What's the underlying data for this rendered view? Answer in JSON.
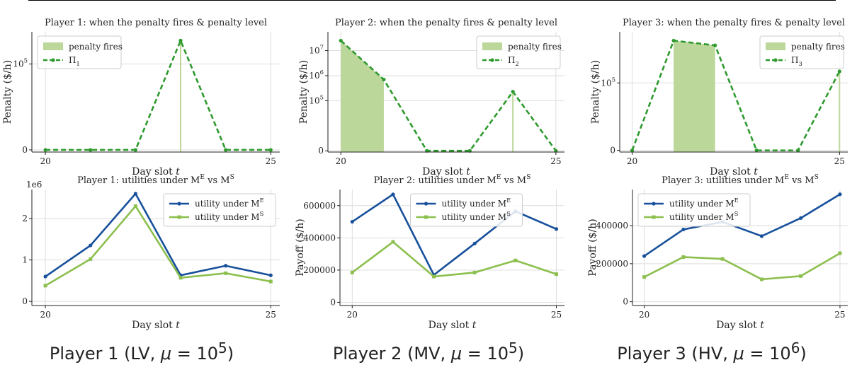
{
  "colors": {
    "penalty_line": "#2e9a2e",
    "penalty_fill": "#bcd79a",
    "utility_e": "#17509b",
    "utility_s": "#8cbf4e",
    "grid": "#dddddd"
  },
  "captions": [
    {
      "prefix": "Player 1 (LV, ",
      "mu": "μ",
      "eq": " = 10",
      "exp": "5",
      "suffix": ")"
    },
    {
      "prefix": "Player 2 (MV, ",
      "mu": "μ",
      "eq": " = 10",
      "exp": "5",
      "suffix": ")"
    },
    {
      "prefix": "Player 3 (HV, ",
      "mu": "μ",
      "eq": " = 10",
      "exp": "6",
      "suffix": ")"
    }
  ],
  "chart_data": [
    {
      "type": "line",
      "title": "Player 1: when the penalty fires & penalty level",
      "xlabel": "Day slot t",
      "ylabel": "Penalty ($/h)",
      "yscale": "symlog",
      "x": [
        20,
        21,
        22,
        23,
        24,
        25
      ],
      "xticks": [
        "20",
        "25"
      ],
      "yticks": [
        "0",
        "10^5"
      ],
      "series": [
        {
          "name": "Π1",
          "values": [
            0,
            0,
            0,
            350000,
            0,
            0
          ]
        }
      ],
      "penalty_fires": [
        [
          23,
          23
        ]
      ],
      "legend": [
        "penalty fires",
        "Π1"
      ],
      "legend_position": "top-left",
      "grid": true
    },
    {
      "type": "line",
      "title": "Player 2: when the penalty fires & penalty level",
      "xlabel": "Day slot t",
      "ylabel": "Penalty ($/h)",
      "yscale": "symlog",
      "x": [
        20,
        21,
        22,
        23,
        24,
        25
      ],
      "xticks": [
        "20",
        "25"
      ],
      "yticks": [
        "0",
        "10^5",
        "10^6",
        "10^7"
      ],
      "series": [
        {
          "name": "Π2",
          "values": [
            25000000,
            700000,
            0,
            0,
            230000,
            0
          ]
        }
      ],
      "penalty_fires": [
        [
          20,
          21
        ],
        [
          24,
          24
        ]
      ],
      "legend": [
        "penalty fires",
        "Π2"
      ],
      "legend_position": "top-right",
      "grid": true
    },
    {
      "type": "line",
      "title": "Player 3: when the penalty fires & penalty level",
      "xlabel": "Day slot t",
      "ylabel": "Penalty ($/h)",
      "yscale": "symlog",
      "x": [
        20,
        21,
        22,
        23,
        24,
        25
      ],
      "xticks": [
        "20",
        "25"
      ],
      "yticks": [
        "0",
        "10^5"
      ],
      "series": [
        {
          "name": "Π3",
          "values": [
            0,
            1800000,
            1300000,
            0,
            0,
            220000
          ]
        }
      ],
      "penalty_fires": [
        [
          21,
          22
        ],
        [
          25,
          25
        ]
      ],
      "legend": [
        "penalty fires",
        "Π3"
      ],
      "legend_position": "top-right",
      "grid": true
    },
    {
      "type": "line",
      "title": "Player 1: utilities under M^E vs M^S",
      "xlabel": "Day slot t",
      "ylabel": "Payoff ($/h)",
      "multiplier": "1e6",
      "x": [
        20,
        21,
        22,
        23,
        24,
        25
      ],
      "xticks": [
        "20",
        "25"
      ],
      "yticks": [
        "0",
        "1",
        "2"
      ],
      "ylim": [
        -0.1,
        2.7
      ],
      "series": [
        {
          "name": "utility under M^E",
          "values": [
            0.6,
            1.35,
            2.6,
            0.63,
            0.86,
            0.63
          ]
        },
        {
          "name": "utility under M^S",
          "values": [
            0.38,
            1.02,
            2.3,
            0.57,
            0.68,
            0.48
          ]
        }
      ],
      "legend_position": "top-right",
      "grid": true
    },
    {
      "type": "line",
      "title": "Player 2: utilities under M^E vs M^S",
      "xlabel": "Day slot t",
      "ylabel": "Payoff ($/h)",
      "x": [
        20,
        21,
        22,
        23,
        24,
        25
      ],
      "xticks": [
        "20",
        "25"
      ],
      "yticks": [
        "0",
        "200000",
        "400000",
        "600000"
      ],
      "ylim": [
        -20000,
        700000
      ],
      "series": [
        {
          "name": "utility under M^E",
          "values": [
            500000,
            670000,
            170000,
            365000,
            565000,
            455000
          ]
        },
        {
          "name": "utility under M^S",
          "values": [
            185000,
            375000,
            160000,
            185000,
            260000,
            175000
          ]
        }
      ],
      "legend_position": "top-center",
      "grid": true
    },
    {
      "type": "line",
      "title": "Player 3: utilities under M^E vs M^S",
      "xlabel": "Day slot t",
      "ylabel": "Payoff ($/h)",
      "x": [
        20,
        21,
        22,
        23,
        24,
        25
      ],
      "xticks": [
        "20",
        "25"
      ],
      "yticks": [
        "0",
        "200000",
        "400000"
      ],
      "ylim": [
        -20000,
        590000
      ],
      "series": [
        {
          "name": "utility under M^E",
          "values": [
            240000,
            380000,
            420000,
            345000,
            440000,
            565000
          ]
        },
        {
          "name": "utility under M^S",
          "values": [
            130000,
            235000,
            225000,
            118000,
            135000,
            255000
          ]
        }
      ],
      "legend_position": "top-left",
      "grid": true
    }
  ]
}
